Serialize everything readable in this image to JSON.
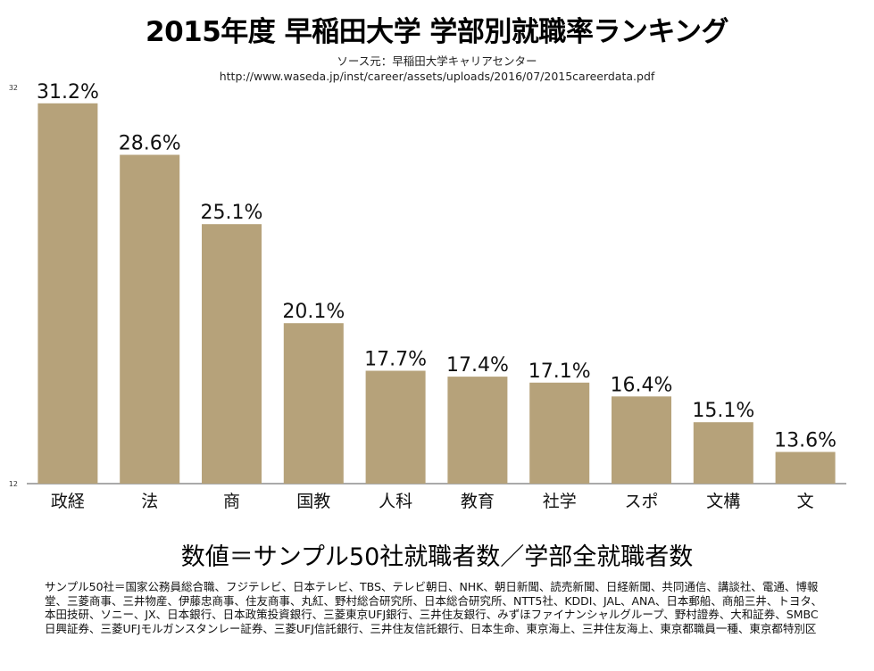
{
  "title": "2015年度 早稲田大学 学部別就職率ランキング",
  "source": {
    "line1": "ソース元：早稲田大学キャリアセンター",
    "line2": "http://www.waseda.jp/inst/career/assets/uploads/2016/07/2015careerdata.pdf"
  },
  "chart_data": {
    "type": "bar",
    "categories": [
      "政経",
      "法",
      "商",
      "国教",
      "人科",
      "教育",
      "社学",
      "スポ",
      "文構",
      "文"
    ],
    "values": [
      31.2,
      28.6,
      25.1,
      20.1,
      17.7,
      17.4,
      17.1,
      16.4,
      15.1,
      13.6
    ],
    "data_labels": [
      "31.2%",
      "28.6%",
      "25.1%",
      "20.1%",
      "17.7%",
      "17.4%",
      "17.1%",
      "16.4%",
      "15.1%",
      "13.6%"
    ],
    "ylim": [
      12,
      32
    ],
    "yticks": [
      "12",
      "32"
    ],
    "bar_color": "#b6a27a",
    "grid": false
  },
  "formula": "数値＝サンプル50社就職者数／学部全就職者数",
  "note": "サンプル50社＝国家公務員総合職、フジテレビ、日本テレビ、TBS、テレビ朝日、NHK、朝日新聞、読売新聞、日経新聞、共同通信、講談社、電通、博報堂、三菱商事、三井物産、伊藤忠商事、住友商事、丸紅、野村総合研究所、日本総合研究所、NTT5社、KDDI、JAL、ANA、日本郵船、商船三井、トヨタ、本田技研、ソニー、JX、日本銀行、日本政策投資銀行、三菱東京UFJ銀行、三井住友銀行、みずほファイナンシャルグループ、野村證券、大和証券、SMBC日興証券、三菱UFJモルガンスタンレー証券、三菱UFJ信託銀行、三井住友信託銀行、日本生命、東京海上、三井住友海上、東京都職員一種、東京都特別区"
}
